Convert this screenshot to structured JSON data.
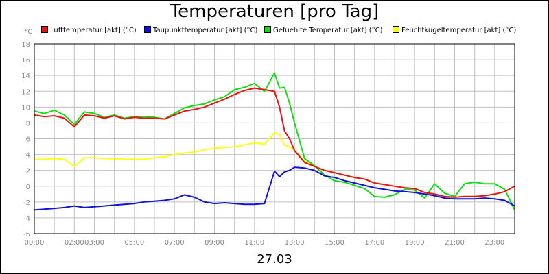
{
  "chart_data": {
    "type": "line",
    "title": "Temperaturen [pro Tag]",
    "date_label": "27.03",
    "unit_label": "°C",
    "ylim": [
      -6,
      18
    ],
    "y_ticks": [
      -6,
      -4,
      -2,
      0,
      2,
      4,
      6,
      8,
      10,
      12,
      14,
      16,
      18
    ],
    "x_ticks": [
      "00:00",
      "02:00",
      "03:00",
      "05:00",
      "07:00",
      "09:00",
      "11:00",
      "13:00",
      "15:00",
      "17:00",
      "19:00",
      "21:00",
      "23:00"
    ],
    "grid": true,
    "legend_position": "top",
    "x": [
      0,
      0.5,
      1,
      1.5,
      2,
      2.5,
      3,
      3.5,
      4,
      4.5,
      5,
      5.5,
      6,
      6.5,
      7,
      7.5,
      8,
      8.5,
      9,
      9.5,
      10,
      10.5,
      11,
      11.5,
      12,
      12.25,
      12.5,
      12.75,
      13,
      13.5,
      14,
      14.5,
      15,
      15.5,
      16,
      16.5,
      17,
      17.5,
      18,
      18.5,
      19,
      19.5,
      20,
      20.5,
      21,
      21.5,
      22,
      22.5,
      23,
      23.5,
      24
    ],
    "series": [
      {
        "name": "Lufttemperatur [akt] (°C)",
        "color": "#ee1111",
        "values": [
          9.0,
          8.8,
          8.9,
          8.6,
          7.5,
          9.0,
          8.9,
          8.6,
          8.9,
          8.5,
          8.7,
          8.6,
          8.6,
          8.5,
          9.0,
          9.5,
          9.7,
          10.0,
          10.5,
          11.0,
          11.6,
          12.1,
          12.4,
          12.2,
          12.0,
          10.0,
          7.0,
          6.0,
          4.5,
          3.0,
          2.5,
          2.0,
          1.7,
          1.4,
          1.1,
          0.9,
          0.4,
          0.2,
          0.0,
          -0.2,
          -0.3,
          -0.8,
          -1.0,
          -1.3,
          -1.4,
          -1.3,
          -1.3,
          -1.2,
          -1.0,
          -0.7,
          0.0
        ]
      },
      {
        "name": "Taupunkttemperatur [akt] (°C)",
        "color": "#1111dd",
        "values": [
          -3.0,
          -2.9,
          -2.8,
          -2.7,
          -2.5,
          -2.7,
          -2.6,
          -2.5,
          -2.4,
          -2.3,
          -2.2,
          -2.0,
          -1.9,
          -1.8,
          -1.6,
          -1.1,
          -1.4,
          -2.0,
          -2.2,
          -2.1,
          -2.2,
          -2.3,
          -2.3,
          -2.2,
          1.9,
          1.2,
          1.8,
          2.0,
          2.4,
          2.3,
          2.0,
          1.3,
          1.1,
          0.7,
          0.4,
          0.1,
          -0.2,
          -0.4,
          -0.6,
          -0.7,
          -0.8,
          -1.0,
          -1.2,
          -1.5,
          -1.6,
          -1.6,
          -1.6,
          -1.5,
          -1.6,
          -1.8,
          -2.5
        ]
      },
      {
        "name": "Gefuehlte Temperatur [akt] (°C)",
        "color": "#11dd11",
        "values": [
          9.5,
          9.2,
          9.6,
          9.0,
          7.8,
          9.4,
          9.2,
          8.7,
          9.0,
          8.6,
          8.8,
          8.8,
          8.7,
          8.5,
          9.2,
          9.9,
          10.2,
          10.4,
          10.9,
          11.3,
          12.2,
          12.5,
          13.0,
          12.0,
          14.3,
          12.4,
          12.5,
          10.5,
          8.0,
          3.5,
          2.6,
          1.4,
          0.7,
          0.5,
          0.1,
          -0.3,
          -1.3,
          -1.4,
          -1.1,
          -0.4,
          -0.5,
          -1.5,
          0.3,
          -0.9,
          -1.3,
          0.3,
          0.5,
          0.3,
          0.3,
          -0.4,
          -3.0
        ]
      },
      {
        "name": "Feuchtkugeltemperatur [akt] (°C)",
        "color": "#ffff11",
        "values": [
          3.4,
          3.4,
          3.5,
          3.4,
          2.5,
          3.6,
          3.6,
          3.5,
          3.5,
          3.4,
          3.4,
          3.4,
          3.6,
          3.7,
          4.0,
          4.2,
          4.3,
          4.6,
          4.8,
          4.9,
          5.0,
          5.2,
          5.5,
          5.3,
          6.8,
          6.5,
          5.2,
          5.0,
          4.5,
          3.2,
          2.5,
          2.0,
          1.7,
          1.4,
          1.1,
          0.9,
          0.4,
          0.2,
          0.0,
          -0.2,
          -0.3,
          -0.8,
          -1.0,
          -1.3,
          -1.4,
          -1.3,
          -1.3,
          -1.2,
          -1.0,
          -0.7,
          0.0
        ]
      }
    ]
  }
}
